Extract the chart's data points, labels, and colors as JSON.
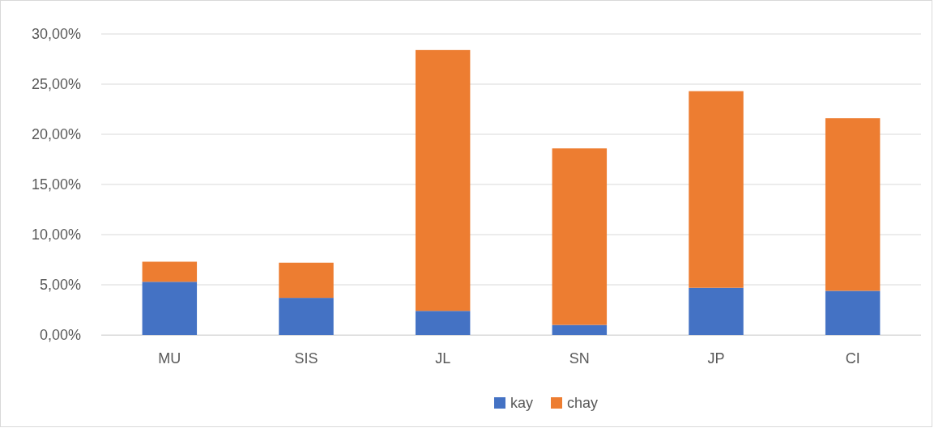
{
  "chart_data": {
    "type": "bar",
    "stacked": true,
    "categories": [
      "MU",
      "SIS",
      "JL",
      "SN",
      "JP",
      "CI"
    ],
    "series": [
      {
        "name": "kay",
        "color": "#4472c4",
        "values": [
          5.3,
          3.7,
          2.4,
          1.0,
          4.7,
          4.4
        ]
      },
      {
        "name": "chay",
        "color": "#ed7d31",
        "values": [
          2.0,
          3.5,
          26.0,
          17.6,
          19.6,
          17.2
        ]
      }
    ],
    "ylim": [
      0,
      30
    ],
    "yticks": [
      {
        "value": 0,
        "label": "0,00%"
      },
      {
        "value": 5,
        "label": "5,00%"
      },
      {
        "value": 10,
        "label": "10,00%"
      },
      {
        "value": 15,
        "label": "15,00%"
      },
      {
        "value": 20,
        "label": "20,00%"
      },
      {
        "value": 25,
        "label": "25,00%"
      },
      {
        "value": 30,
        "label": "30,00%"
      }
    ],
    "grid": "y",
    "legend": "bottom"
  }
}
